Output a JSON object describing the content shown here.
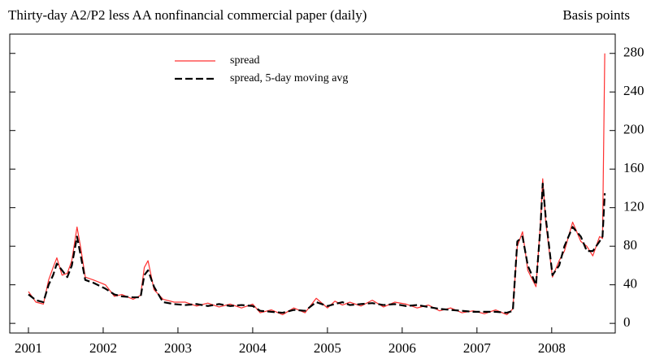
{
  "chart_data": {
    "type": "line",
    "title": "Thirty-day A2/P2 less AA nonfinancial commercial paper (daily)",
    "y_axis_label": "Basis points",
    "x": [
      2001.0,
      2001.1,
      2001.2,
      2001.27,
      2001.33,
      2001.38,
      2001.45,
      2001.52,
      2001.58,
      2001.65,
      2001.7,
      2001.76,
      2001.87,
      2002.03,
      2002.15,
      2002.25,
      2002.4,
      2002.5,
      2002.55,
      2002.6,
      2002.68,
      2002.8,
      2002.95,
      2003.1,
      2003.25,
      2003.4,
      2003.55,
      2003.7,
      2003.85,
      2004.0,
      2004.1,
      2004.25,
      2004.4,
      2004.55,
      2004.7,
      2004.85,
      2005.0,
      2005.1,
      2005.2,
      2005.3,
      2005.45,
      2005.6,
      2005.75,
      2005.9,
      2006.05,
      2006.2,
      2006.35,
      2006.5,
      2006.65,
      2006.8,
      2006.95,
      2007.1,
      2007.25,
      2007.4,
      2007.48,
      2007.54,
      2007.61,
      2007.68,
      2007.79,
      2007.85,
      2007.88,
      2007.92,
      2008.01,
      2008.1,
      2008.17,
      2008.28,
      2008.39,
      2008.47,
      2008.55,
      2008.64,
      2008.68,
      2008.71
    ],
    "series": [
      {
        "name": "spread",
        "color": "#ff3030",
        "line_style": "solid",
        "values": [
          33,
          22,
          20,
          45,
          58,
          68,
          50,
          52,
          65,
          100,
          78,
          48,
          45,
          40,
          28,
          30,
          25,
          29,
          58,
          65,
          35,
          25,
          22,
          22,
          18,
          21,
          17,
          20,
          16,
          20,
          11,
          14,
          9,
          16,
          11,
          26,
          16,
          23,
          19,
          22,
          18,
          24,
          17,
          22,
          20,
          16,
          19,
          13,
          16,
          11,
          13,
          10,
          14,
          9,
          15,
          80,
          95,
          55,
          38,
          105,
          150,
          105,
          48,
          65,
          75,
          105,
          85,
          80,
          70,
          90,
          88,
          280
        ]
      },
      {
        "name": "spread, 5-day moving avg",
        "color": "#000000",
        "line_style": "dashed",
        "values": [
          30,
          24,
          22,
          40,
          50,
          62,
          55,
          48,
          60,
          90,
          70,
          45,
          42,
          36,
          30,
          28,
          27,
          27,
          50,
          55,
          38,
          22,
          20,
          19,
          20,
          18,
          20,
          18,
          19,
          18,
          13,
          12,
          11,
          14,
          13,
          22,
          18,
          20,
          22,
          19,
          20,
          21,
          19,
          20,
          18,
          19,
          17,
          15,
          14,
          13,
          12,
          12,
          12,
          11,
          13,
          85,
          90,
          60,
          40,
          100,
          145,
          110,
          50,
          60,
          80,
          100,
          90,
          75,
          75,
          85,
          90,
          135
        ]
      }
    ],
    "xlim": [
      2000.75,
      2008.85
    ],
    "xticks": [
      2001,
      2002,
      2003,
      2004,
      2005,
      2006,
      2007,
      2008
    ],
    "ylim": [
      -10,
      300
    ],
    "yticks": [
      0,
      40,
      80,
      120,
      160,
      200,
      240,
      280
    ],
    "y_axis_side": "right",
    "grid": false,
    "legend": "top-left"
  }
}
